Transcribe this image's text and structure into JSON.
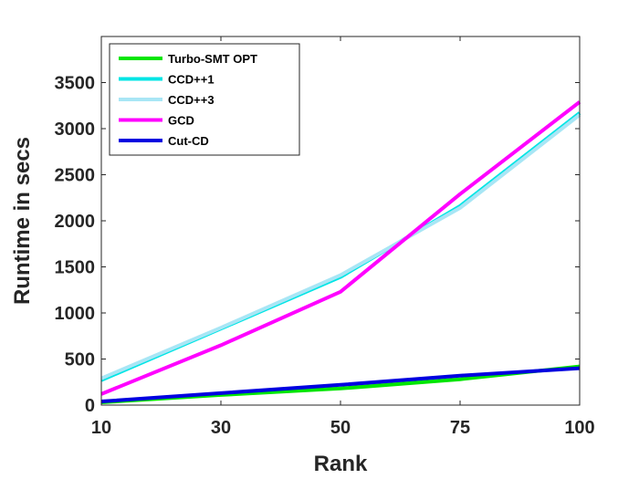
{
  "chart_data": {
    "type": "line",
    "categories": [
      "10",
      "30",
      "50",
      "75",
      "100"
    ],
    "xlabel": "Rank",
    "ylabel": "Runtime in secs",
    "yticks": [
      "0",
      "500",
      "1000",
      "1500",
      "2000",
      "2500",
      "3000",
      "3500"
    ],
    "ylim": [
      0,
      4000
    ],
    "grid": false,
    "legend_position": "top-left",
    "series": [
      {
        "name": "Turbo-SMT OPT",
        "color": "#00e600",
        "values": [
          30,
          110,
          180,
          280,
          420
        ]
      },
      {
        "name": "CCD++1",
        "color": "#00e5e5",
        "values": [
          270,
          830,
          1390,
          2160,
          3170
        ]
      },
      {
        "name": "CCD++3",
        "color": "#a8e6f5",
        "values": [
          290,
          840,
          1410,
          2140,
          3150
        ]
      },
      {
        "name": "GCD",
        "color": "#ff00ff",
        "values": [
          120,
          650,
          1230,
          2290,
          3290
        ]
      },
      {
        "name": "Cut-CD",
        "color": "#0000e0",
        "values": [
          40,
          130,
          220,
          320,
          400
        ]
      }
    ]
  }
}
